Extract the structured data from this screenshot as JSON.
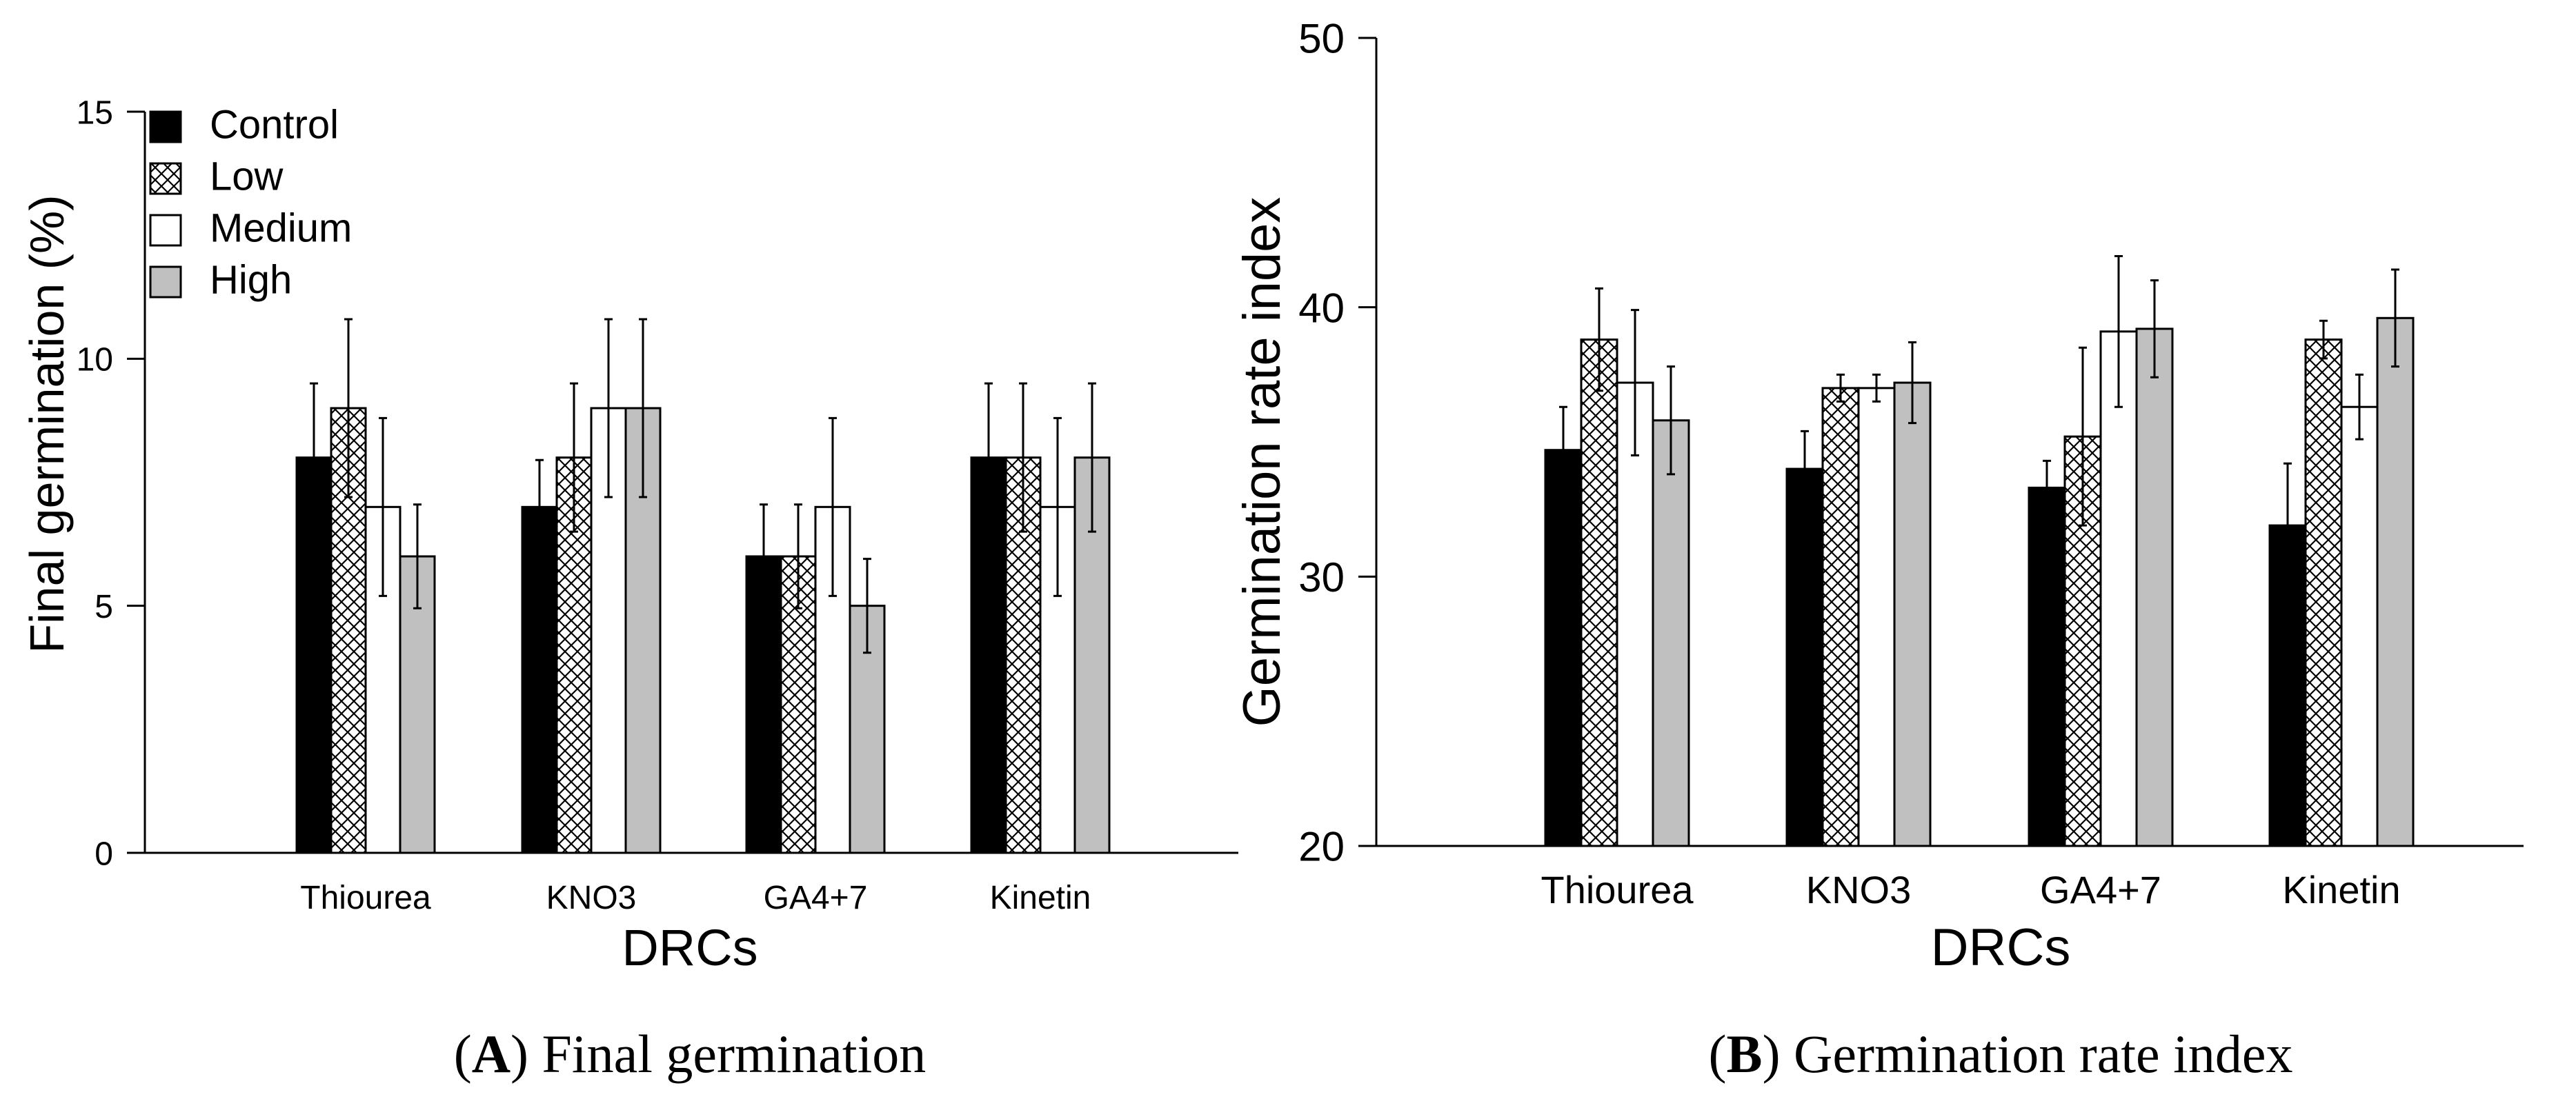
{
  "chart_data": [
    {
      "panel": "A",
      "type": "bar",
      "caption_letter": "A",
      "caption_text": ") Final germination",
      "ylabel": "Final germination (%)",
      "xlabel": "DRCs",
      "ylim": [
        0,
        15
      ],
      "yticks": [
        0,
        5,
        10,
        15
      ],
      "categories": [
        "Thiourea",
        "KNO3",
        "GA4+7",
        "Kinetin"
      ],
      "legend": {
        "placement": "top-left",
        "entries": [
          "Control",
          "Low",
          "Medium",
          "High"
        ]
      },
      "series": [
        {
          "name": "Control",
          "values": [
            8,
            7,
            6,
            8
          ],
          "errors": [
            1.5,
            0.95,
            1.05,
            1.5
          ]
        },
        {
          "name": "Low",
          "values": [
            9,
            8,
            6,
            8
          ],
          "errors": [
            1.8,
            1.5,
            1.05,
            1.5
          ]
        },
        {
          "name": "Medium",
          "values": [
            7,
            9,
            7,
            7
          ],
          "errors": [
            1.8,
            1.8,
            1.8,
            1.8
          ]
        },
        {
          "name": "High",
          "values": [
            6,
            9,
            5,
            8
          ],
          "errors": [
            1.05,
            1.8,
            0.95,
            1.5
          ]
        }
      ]
    },
    {
      "panel": "B",
      "type": "bar",
      "caption_letter": "B",
      "caption_text": ") Germination rate index",
      "ylabel": "Germination rate index",
      "xlabel": "DRCs",
      "ylim": [
        20,
        50
      ],
      "yticks": [
        20,
        30,
        40,
        50
      ],
      "categories": [
        "Thiourea",
        "KNO3",
        "GA4+7",
        "Kinetin"
      ],
      "series": [
        {
          "name": "Control",
          "values": [
            34.7,
            34.0,
            33.3,
            31.9
          ],
          "errors": [
            1.6,
            1.4,
            1.0,
            2.3
          ]
        },
        {
          "name": "Low",
          "values": [
            38.8,
            37.0,
            35.2,
            38.8
          ],
          "errors": [
            1.9,
            0.5,
            3.3,
            0.7
          ]
        },
        {
          "name": "Medium",
          "values": [
            37.2,
            37.0,
            39.1,
            36.3
          ],
          "errors": [
            2.7,
            0.5,
            2.8,
            1.2
          ]
        },
        {
          "name": "High",
          "values": [
            35.8,
            37.2,
            39.2,
            39.6
          ],
          "errors": [
            2.0,
            1.5,
            1.8,
            1.8
          ]
        }
      ]
    }
  ],
  "colors": {
    "control": "#000000",
    "low_pattern": "#000000",
    "medium": "#ffffff",
    "high": "#c0c0c0",
    "axis": "#000000"
  }
}
